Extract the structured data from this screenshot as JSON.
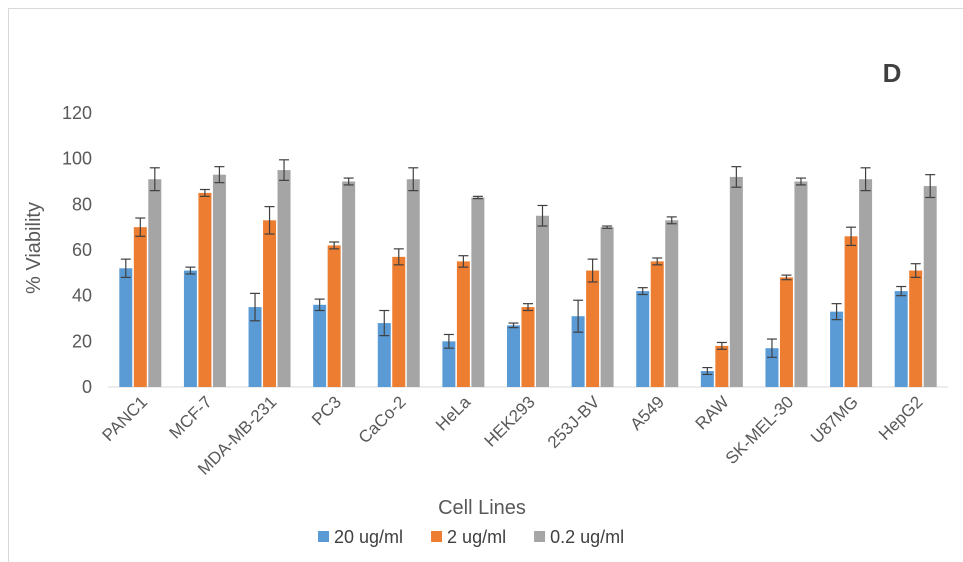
{
  "chart_data": {
    "type": "bar",
    "panel_label": "D",
    "xlabel": "Cell Lines",
    "ylabel": "% Viability",
    "ylim": [
      0,
      120
    ],
    "yticks": [
      0,
      20,
      40,
      60,
      80,
      100,
      120
    ],
    "grid": false,
    "legend_position": "bottom",
    "categories": [
      "PANC1",
      "MCF-7",
      "MDA-MB-231",
      "PC3",
      "CaCo-2",
      "HeLa",
      "HEK293",
      "253J-BV",
      "A549",
      "RAW",
      "SK-MEL-30",
      "U87MG",
      "HepG2"
    ],
    "series": [
      {
        "name": "20 ug/ml",
        "color": "#5b9bd5",
        "values": [
          52,
          51,
          35,
          36,
          28,
          20,
          27,
          31,
          42,
          7,
          17,
          33,
          42
        ],
        "errors": [
          4,
          1.5,
          6,
          2.5,
          5.5,
          3,
          1,
          7,
          1.5,
          1.5,
          4,
          3.5,
          2
        ]
      },
      {
        "name": "2 ug/ml",
        "color": "#ed7d31",
        "values": [
          70,
          85,
          73,
          62,
          57,
          55,
          35,
          51,
          55,
          18,
          48,
          66,
          51
        ],
        "errors": [
          4,
          1.5,
          6,
          1.5,
          3.5,
          2.5,
          1.5,
          5,
          1.5,
          1.5,
          1,
          4,
          3
        ]
      },
      {
        "name": "0.2 ug/ml",
        "color": "#a5a5a5",
        "values": [
          91,
          93,
          95,
          90,
          91,
          83,
          75,
          70,
          73,
          92,
          90,
          91,
          88
        ],
        "errors": [
          5,
          3.5,
          4.5,
          1.5,
          5,
          0.5,
          4.5,
          0.5,
          1.5,
          4.5,
          1.5,
          5,
          5
        ]
      }
    ]
  }
}
